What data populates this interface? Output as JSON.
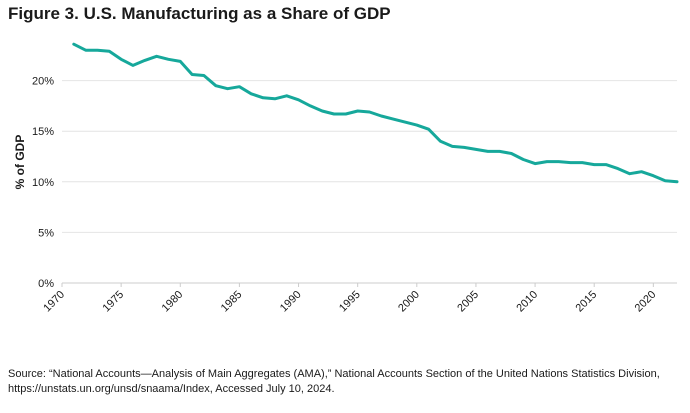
{
  "title": "Figure 3. U.S. Manufacturing as a Share of GDP",
  "source": {
    "line1": "Source: “National Accounts—Analysis of Main Aggregates (AMA),” National Accounts Section of the United Nations Statistics Division,",
    "line2": "https://unstats.un.org/unsd/snaama/Index, Accessed July 10, 2024."
  },
  "colors": {
    "line": "#16a89b",
    "grid": "#e4e4e4",
    "axis": "#cccccc",
    "text": "#1a1a1a"
  },
  "chart_data": {
    "type": "line",
    "title": "Figure 3. U.S. Manufacturing as a Share of GDP",
    "xlabel": "",
    "ylabel": "% of GDP",
    "xlim": [
      1970,
      2022
    ],
    "ylim": [
      0,
      25
    ],
    "x_ticks": [
      "1970",
      "1975",
      "1980",
      "1985",
      "1990",
      "1995",
      "2000",
      "2005",
      "2010",
      "2015",
      "2020"
    ],
    "y_ticks": [
      "0%",
      "5%",
      "10%",
      "15%",
      "20%"
    ],
    "grid": true,
    "legend": "none",
    "series": [
      {
        "x": [
          1971,
          1972,
          1973,
          1974,
          1975,
          1976,
          1977,
          1978,
          1979,
          1980,
          1981,
          1982,
          1983,
          1984,
          1985,
          1986,
          1987,
          1988,
          1989,
          1990,
          1991,
          1992,
          1993,
          1994,
          1995,
          1996,
          1997,
          1998,
          1999,
          2000,
          2001,
          2002,
          2003,
          2004,
          2005,
          2006,
          2007,
          2008,
          2009,
          2010,
          2011,
          2012,
          2013,
          2014,
          2015,
          2016,
          2017,
          2018,
          2019,
          2020,
          2021,
          2022
        ],
        "values": [
          23.6,
          23.0,
          23.0,
          22.9,
          22.1,
          21.5,
          22.0,
          22.4,
          22.1,
          21.9,
          20.6,
          20.5,
          19.5,
          19.2,
          19.4,
          18.7,
          18.3,
          18.2,
          18.5,
          18.1,
          17.5,
          17.0,
          16.7,
          16.7,
          17.0,
          16.9,
          16.5,
          16.2,
          15.9,
          15.6,
          15.2,
          14.0,
          13.5,
          13.4,
          13.2,
          13.0,
          13.0,
          12.8,
          12.2,
          11.8,
          12.0,
          12.0,
          11.9,
          11.9,
          11.7,
          11.7,
          11.3,
          10.8,
          11.0,
          10.6,
          10.1,
          10.0
        ]
      }
    ]
  }
}
